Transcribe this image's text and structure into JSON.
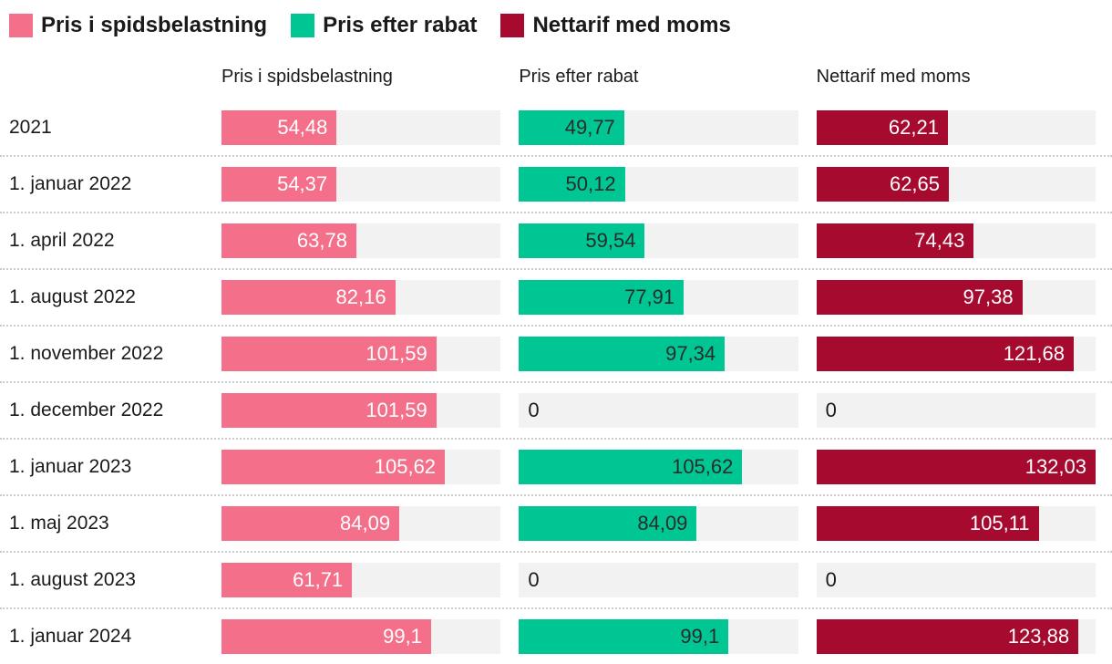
{
  "colors": {
    "pink": "#f4708a",
    "green": "#00c694",
    "red": "#a60a2f",
    "track": "#f2f2f2",
    "text": "#1a1a1a",
    "separator": "#cccccc"
  },
  "legend": {
    "items": [
      {
        "label": "Pris i spidsbelastning",
        "color": "#f4708a"
      },
      {
        "label": "Pris efter rabat",
        "color": "#00c694"
      },
      {
        "label": "Nettarif med moms",
        "color": "#a60a2f"
      }
    ]
  },
  "column_headers": [
    "Pris i spidsbelastning",
    "Pris efter rabat",
    "Nettarif med moms"
  ],
  "chart_data": {
    "type": "bar",
    "orientation": "horizontal",
    "legend_position": "top",
    "value_axis_max": 132.03,
    "categories": [
      "2021",
      "1. januar 2022",
      "1. april 2022",
      "1. august 2022",
      "1. november 2022",
      "1. december 2022",
      "1. januar 2023",
      "1. maj 2023",
      "1. august 2023",
      "1. januar 2024"
    ],
    "series": [
      {
        "name": "Pris i spidsbelastning",
        "color": "#f4708a",
        "value_text_style": "light",
        "values": [
          54.48,
          54.37,
          63.78,
          82.16,
          101.59,
          101.59,
          105.62,
          84.09,
          61.71,
          99.1
        ],
        "labels": [
          "54,48",
          "54,37",
          "63,78",
          "82,16",
          "101,59",
          "101,59",
          "105,62",
          "84,09",
          "61,71",
          "99,1"
        ]
      },
      {
        "name": "Pris efter rabat",
        "color": "#00c694",
        "value_text_style": "dark",
        "values": [
          49.77,
          50.12,
          59.54,
          77.91,
          97.34,
          0,
          105.62,
          84.09,
          0,
          99.1
        ],
        "labels": [
          "49,77",
          "50,12",
          "59,54",
          "77,91",
          "97,34",
          "0",
          "105,62",
          "84,09",
          "0",
          "99,1"
        ]
      },
      {
        "name": "Nettarif med moms",
        "color": "#a60a2f",
        "value_text_style": "light",
        "values": [
          62.21,
          62.65,
          74.43,
          97.38,
          121.68,
          0,
          132.03,
          105.11,
          0,
          123.88
        ],
        "labels": [
          "62,21",
          "62,65",
          "74,43",
          "97,38",
          "121,68",
          "0",
          "132,03",
          "105,11",
          "0",
          "123,88"
        ]
      }
    ]
  }
}
